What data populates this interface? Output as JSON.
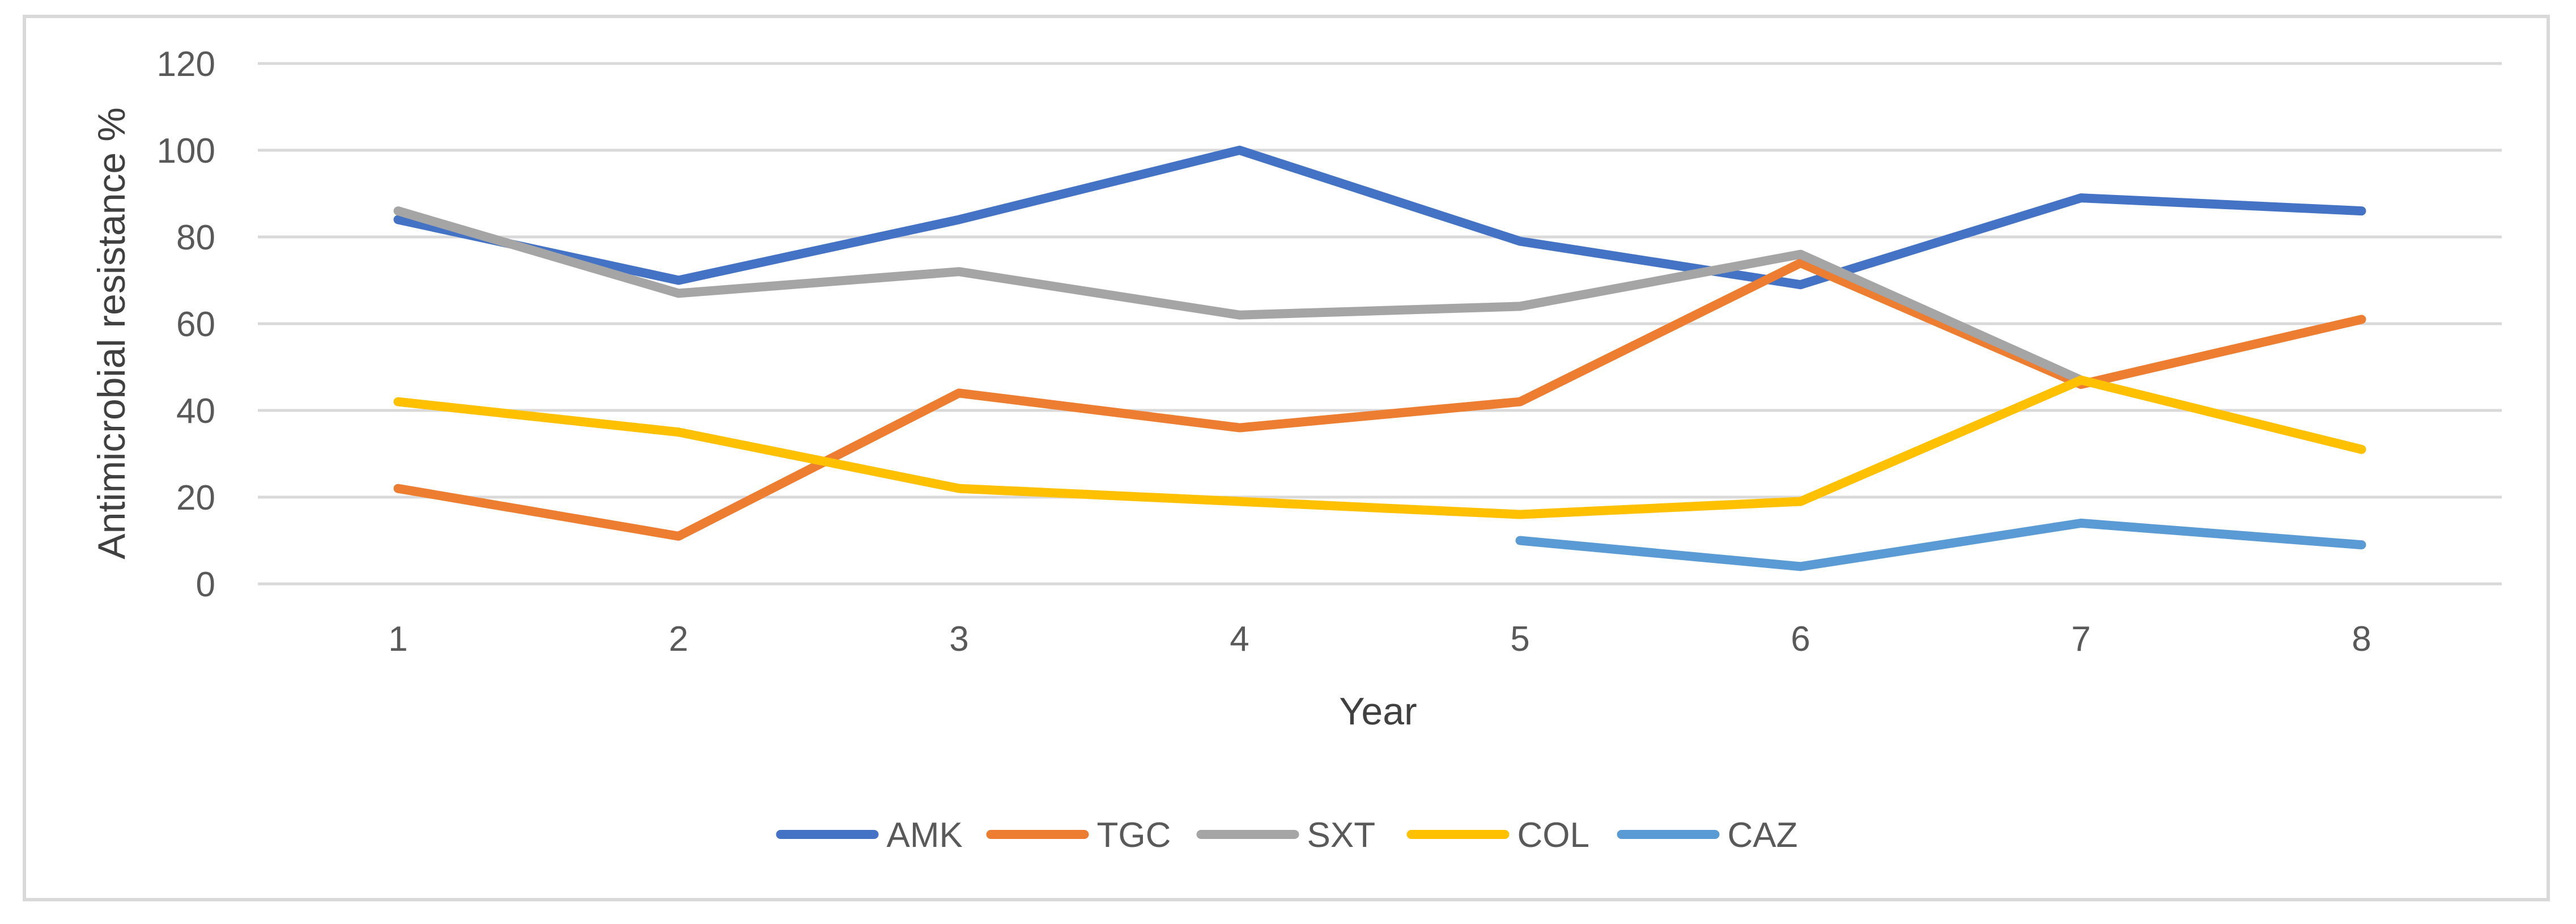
{
  "chart_data": {
    "type": "line",
    "title": "",
    "xlabel": "Year",
    "ylabel": "Antimicrobial resistance %",
    "ylim": [
      0,
      120
    ],
    "yticks": [
      0,
      20,
      40,
      60,
      80,
      100,
      120
    ],
    "categories": [
      "1",
      "2",
      "3",
      "4",
      "5",
      "6",
      "7",
      "8"
    ],
    "grid": true,
    "legend_position": "bottom",
    "series": [
      {
        "name": "AMK",
        "color": "#4472C4",
        "values": [
          84,
          70,
          84,
          100,
          79,
          69,
          89,
          86
        ]
      },
      {
        "name": "TGC",
        "color": "#ED7D31",
        "values": [
          22,
          11,
          44,
          36,
          42,
          74,
          46,
          61
        ]
      },
      {
        "name": "SXT",
        "color": "#A5A5A5",
        "values": [
          86,
          67,
          72,
          62,
          64,
          76,
          47,
          null
        ]
      },
      {
        "name": "COL",
        "color": "#FFC000",
        "values": [
          42,
          35,
          22,
          19,
          16,
          19,
          47,
          31
        ]
      },
      {
        "name": "CAZ",
        "color": "#5B9BD5",
        "values": [
          null,
          null,
          null,
          null,
          10,
          4,
          14,
          9
        ]
      }
    ]
  }
}
